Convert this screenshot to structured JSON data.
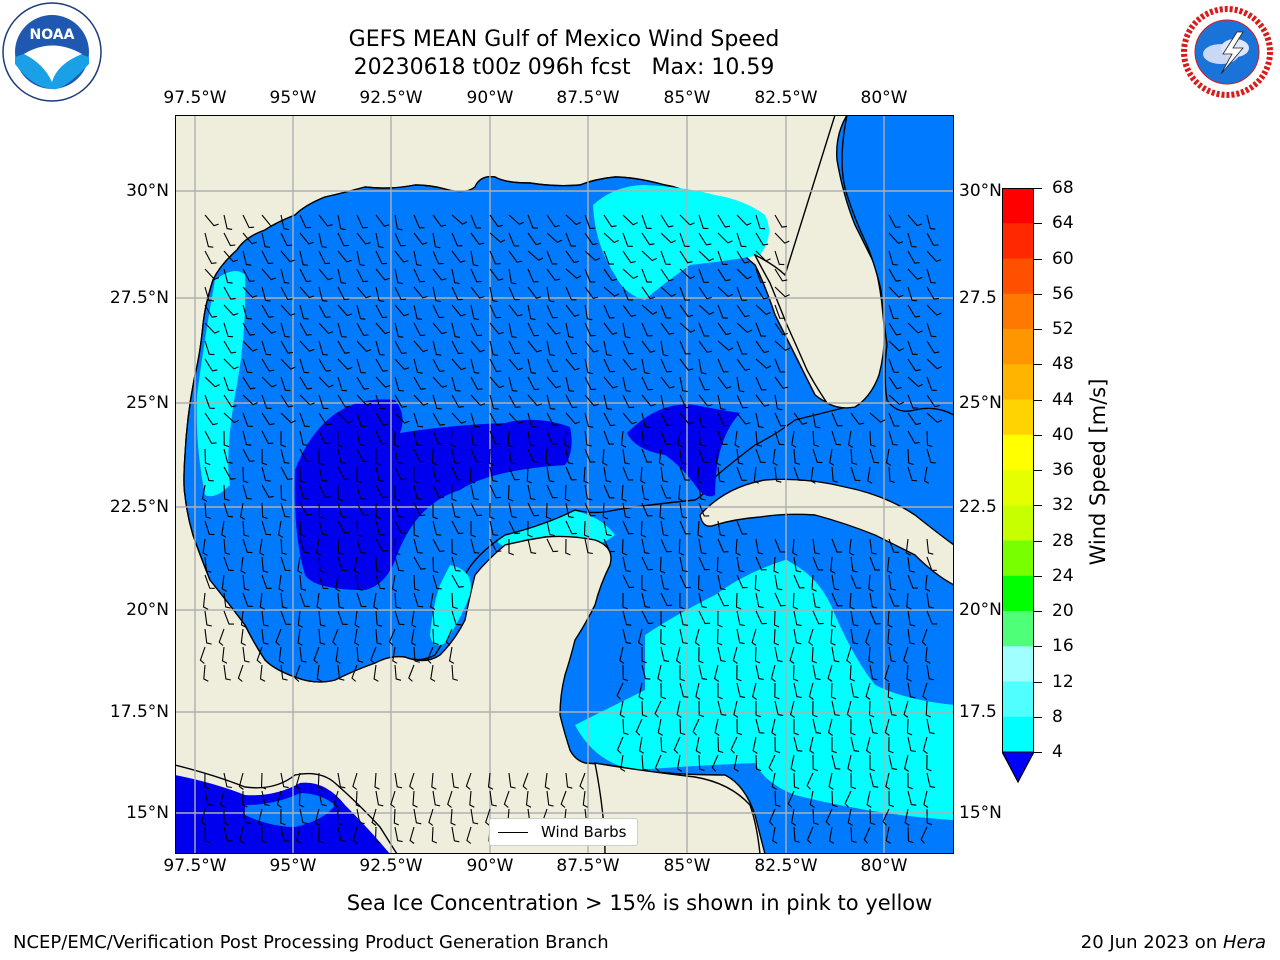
{
  "header": {
    "title_line1": "GEFS MEAN Gulf of Mexico Wind Speed",
    "title_line2": "20230618 t00z 096h fcst   Max: 10.59"
  },
  "logos": {
    "noaa_text": "NOAA",
    "noaa_ring_text": "NATIONAL OCEANIC AND ATMOSPHERIC ADMINISTRATION · U.S. DEPARTMENT OF COMMERCE",
    "nws_ring_text": "NATIONAL WEATHER SERVICE"
  },
  "map": {
    "lon_labels": [
      "97.5°W",
      "95°W",
      "92.5°W",
      "90°W",
      "87.5°W",
      "85°W",
      "82.5°W",
      "80°W"
    ],
    "lat_labels_left": [
      "30°N",
      "27.5°N",
      "25°N",
      "22.5°N",
      "20°N",
      "17.5°N",
      "15°N"
    ],
    "lat_labels_right": [
      "30°N",
      "27.5",
      "25°N",
      "22.5",
      "20°N",
      "17.5",
      "15°N"
    ],
    "land_color": "#efeddc",
    "grid_color": "#b0b0b0",
    "legend_label": "Wind Barbs",
    "max_wind_speed": 10.59
  },
  "colorbar": {
    "label": "Wind Speed [m/s]",
    "ticks": [
      "68",
      "64",
      "60",
      "56",
      "52",
      "48",
      "44",
      "40",
      "36",
      "32",
      "28",
      "24",
      "20",
      "16",
      "12",
      "8",
      "4"
    ],
    "colors": [
      "#ff0000",
      "#ff2800",
      "#ff5000",
      "#ff7800",
      "#ff9600",
      "#ffb400",
      "#ffd200",
      "#ffff00",
      "#e6ff00",
      "#c8ff00",
      "#78ff00",
      "#00ff00",
      "#50ff78",
      "#a0ffff",
      "#50ffff",
      "#00ffff",
      "#007bff"
    ],
    "under_color": "#0000ff"
  },
  "footer": {
    "note": "Sea Ice Concentration > 15% is shown in pink to yellow",
    "credit": "NCEP/EMC/Verification Post Processing Product Generation Branch",
    "date": "20 Jun 2023 on ",
    "machine": "Hera"
  }
}
